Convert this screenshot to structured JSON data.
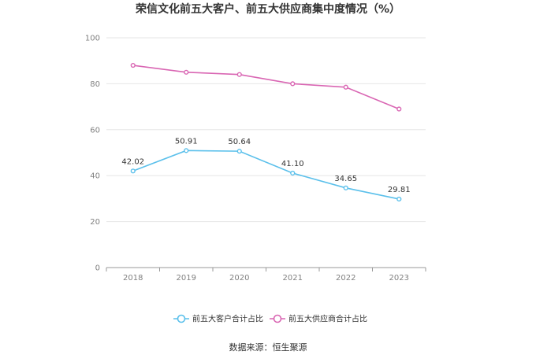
{
  "chart_data": {
    "type": "line",
    "title": "荣信文化前五大客户、前五大供应商集中度情况（%）",
    "xlabel": "",
    "ylabel": "",
    "categories": [
      "2018",
      "2019",
      "2020",
      "2021",
      "2022",
      "2023"
    ],
    "ylim": [
      0,
      100
    ],
    "yticks": [
      0,
      20,
      40,
      60,
      80,
      100
    ],
    "grid": true,
    "legend_position": "bottom",
    "series": [
      {
        "name": "前五大客户合计占比",
        "color": "#5bc0eb",
        "values": [
          42.02,
          50.91,
          50.64,
          41.1,
          34.65,
          29.81
        ],
        "labels": [
          "42.02",
          "50.91",
          "50.64",
          "41.10",
          "34.65",
          "29.81"
        ]
      },
      {
        "name": "前五大供应商合计占比",
        "color": "#d966b3",
        "values": [
          88.0,
          85.0,
          84.0,
          80.0,
          78.5,
          69.0
        ]
      }
    ]
  },
  "source": "数据来源：恒生聚源"
}
